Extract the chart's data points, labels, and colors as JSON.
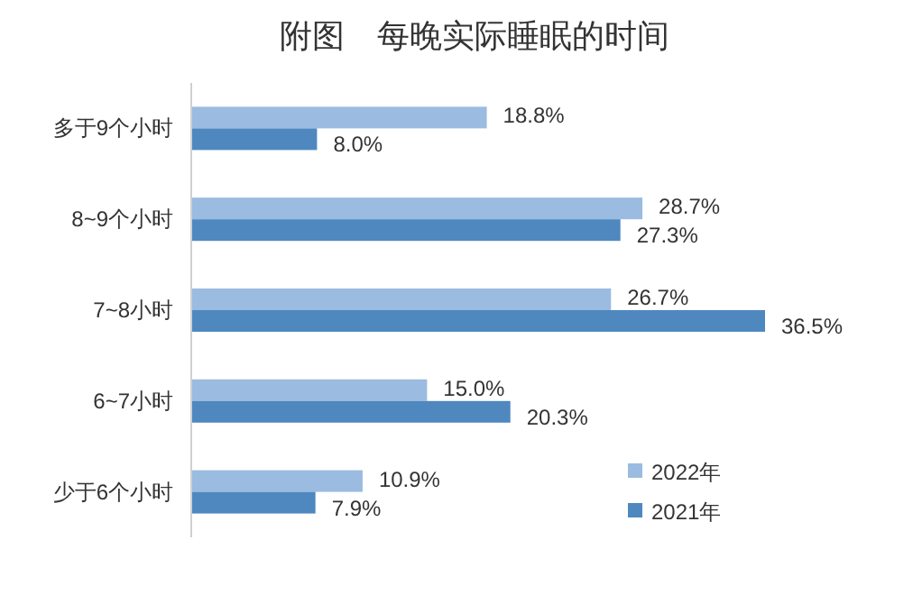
{
  "chart_data": {
    "type": "bar",
    "orientation": "horizontal",
    "title": "附图　每晚实际睡眠的时间",
    "categories": [
      "多于9个小时",
      "8~9个小时",
      "7~8小时",
      "6~7小时",
      "少于6个小时"
    ],
    "legend": "bottom right",
    "series": [
      {
        "name": "2022年",
        "color": "#9bbbe0",
        "values": [
          18.8,
          28.7,
          26.7,
          15.0,
          10.9
        ],
        "value_labels": [
          "18.8%",
          "28.7%",
          "26.7%",
          "15.0%",
          "10.9%"
        ]
      },
      {
        "name": "2021年",
        "color": "#4f88bf",
        "values": [
          8.0,
          27.3,
          36.5,
          20.3,
          7.9
        ],
        "value_labels": [
          "8.0%",
          "27.3%",
          "36.5%",
          "20.3%",
          "7.9%"
        ]
      }
    ]
  }
}
